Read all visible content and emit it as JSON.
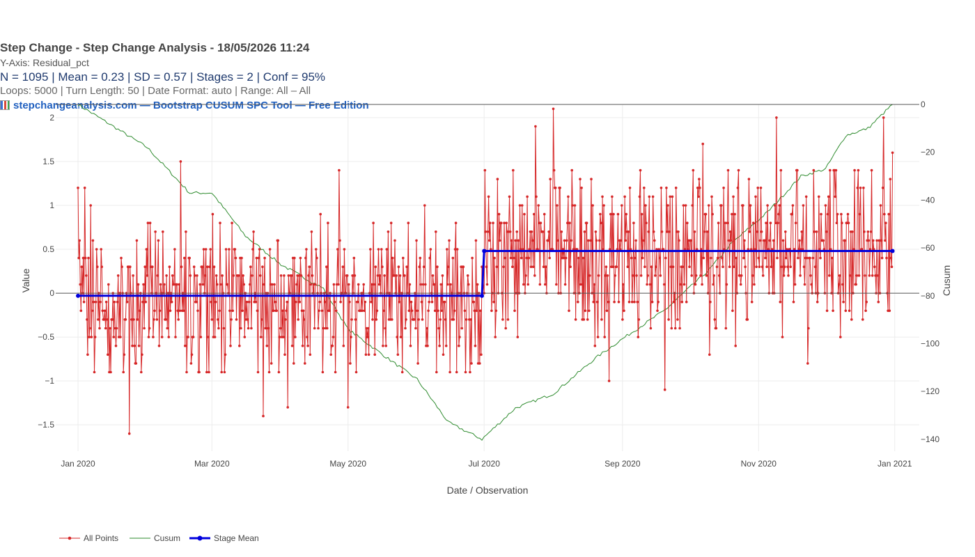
{
  "header": {
    "title": "Step Change - Step Change Analysis - 18/05/2026 11:24",
    "yaxis_note": "Y-Axis: Residual_pct",
    "stats": "N = 1095  |  Mean = 0.23  |  SD = 0.57  |  Stages = 2  |  Conf = 95%",
    "config": "Loops: 5000  |  Turn Length: 50  |  Date Format: auto  |  Range: All – All",
    "credit": "stepchangeanalysis.com — Bootstrap CUSUM SPC Tool — Free Edition",
    "credit_icon": "bar-chart-icon"
  },
  "chart_data": {
    "type": "line",
    "xlabel": "Date / Observation",
    "ylabel": "Value",
    "y2label": "Cusum",
    "x_range": [
      "2019-12-22",
      "2021-01-12"
    ],
    "ylim": [
      -1.8,
      2.15
    ],
    "y2lim": [
      -145,
      0
    ],
    "x_ticks": [
      {
        "date": "2020-01-01",
        "label": "Jan 2020"
      },
      {
        "date": "2020-03-01",
        "label": "Mar 2020"
      },
      {
        "date": "2020-05-01",
        "label": "May 2020"
      },
      {
        "date": "2020-07-01",
        "label": "Jul 2020"
      },
      {
        "date": "2020-09-01",
        "label": "Sep 2020"
      },
      {
        "date": "2020-11-01",
        "label": "Nov 2020"
      },
      {
        "date": "2021-01-01",
        "label": "Jan 2021"
      }
    ],
    "y_ticks": [
      {
        "value": -1.5,
        "label": "−1.5"
      },
      {
        "value": -1,
        "label": "−1"
      },
      {
        "value": -0.5,
        "label": "−0.5"
      },
      {
        "value": 0,
        "label": "0"
      },
      {
        "value": 0.5,
        "label": "0.5"
      },
      {
        "value": 1,
        "label": "1"
      },
      {
        "value": 1.5,
        "label": "1.5"
      },
      {
        "value": 2,
        "label": "2"
      }
    ],
    "y2_ticks": [
      {
        "value": 0,
        "label": "0"
      },
      {
        "value": -20,
        "label": "−20"
      },
      {
        "value": -40,
        "label": "−40"
      },
      {
        "value": -60,
        "label": "−60"
      },
      {
        "value": -80,
        "label": "−80"
      },
      {
        "value": -100,
        "label": "−100"
      },
      {
        "value": -120,
        "label": "−120"
      },
      {
        "value": -140,
        "label": "−140"
      }
    ],
    "grid": true,
    "legend_position": "bottom-left",
    "series": [
      {
        "name": "All Points",
        "color": "#d62728",
        "axis": "y",
        "segments": [
          {
            "start": "2020-01-01",
            "end": "2020-06-30",
            "mean": -0.03,
            "sd": 0.5,
            "seed": 11,
            "highlights": [
              {
                "date": "2020-01-01",
                "value": 1.2
              },
              {
                "date": "2020-01-04",
                "value": 1.2
              },
              {
                "date": "2020-01-24",
                "value": -1.6
              },
              {
                "date": "2020-02-16",
                "value": 1.5
              },
              {
                "date": "2020-03-24",
                "value": -1.4
              },
              {
                "date": "2020-04-04",
                "value": -1.3
              },
              {
                "date": "2020-04-27",
                "value": 1.4
              },
              {
                "date": "2020-05-01",
                "value": -1.3
              }
            ]
          },
          {
            "start": "2020-07-01",
            "end": "2020-12-31",
            "mean": 0.48,
            "sd": 0.5,
            "seed": 29,
            "highlights": [
              {
                "date": "2020-07-24",
                "value": 1.9
              },
              {
                "date": "2020-08-01",
                "value": 2.1
              },
              {
                "date": "2020-08-26",
                "value": -1.0
              },
              {
                "date": "2020-09-20",
                "value": -1.1
              },
              {
                "date": "2020-10-07",
                "value": 1.7
              },
              {
                "date": "2020-11-09",
                "value": 2.0
              },
              {
                "date": "2020-11-23",
                "value": -0.8
              },
              {
                "date": "2020-12-27",
                "value": 2.0
              },
              {
                "date": "2020-12-31",
                "value": 1.6
              }
            ]
          }
        ]
      },
      {
        "name": "Cusum",
        "color": "#2e8b2e",
        "axis": "y2",
        "anchors": [
          {
            "date": "2020-01-01",
            "value": 0
          },
          {
            "date": "2020-02-01",
            "value": -18
          },
          {
            "date": "2020-02-20",
            "value": -37
          },
          {
            "date": "2020-03-01",
            "value": -37
          },
          {
            "date": "2020-03-16",
            "value": -55
          },
          {
            "date": "2020-04-01",
            "value": -67
          },
          {
            "date": "2020-04-20",
            "value": -77
          },
          {
            "date": "2020-05-01",
            "value": -94
          },
          {
            "date": "2020-05-20",
            "value": -107
          },
          {
            "date": "2020-06-01",
            "value": -115
          },
          {
            "date": "2020-06-15",
            "value": -133
          },
          {
            "date": "2020-06-30",
            "value": -140
          },
          {
            "date": "2020-07-15",
            "value": -127
          },
          {
            "date": "2020-08-01",
            "value": -121
          },
          {
            "date": "2020-08-20",
            "value": -106
          },
          {
            "date": "2020-09-01",
            "value": -98
          },
          {
            "date": "2020-09-20",
            "value": -86
          },
          {
            "date": "2020-10-10",
            "value": -69
          },
          {
            "date": "2020-10-20",
            "value": -58
          },
          {
            "date": "2020-11-05",
            "value": -45
          },
          {
            "date": "2020-11-20",
            "value": -30
          },
          {
            "date": "2020-12-01",
            "value": -27
          },
          {
            "date": "2020-12-10",
            "value": -13
          },
          {
            "date": "2020-12-20",
            "value": -10
          },
          {
            "date": "2020-12-31",
            "value": 0
          }
        ]
      },
      {
        "name": "Stage Mean",
        "color": "#0000dd",
        "axis": "y",
        "steps": [
          {
            "start": "2020-01-01",
            "end": "2020-06-30",
            "value": -0.03
          },
          {
            "start": "2020-07-01",
            "end": "2020-12-31",
            "value": 0.48
          }
        ]
      }
    ],
    "reference_lines": [
      {
        "axis": "y",
        "value": 0,
        "color": "#555555"
      },
      {
        "axis": "y2",
        "value": 0,
        "color": "#555555"
      }
    ]
  }
}
